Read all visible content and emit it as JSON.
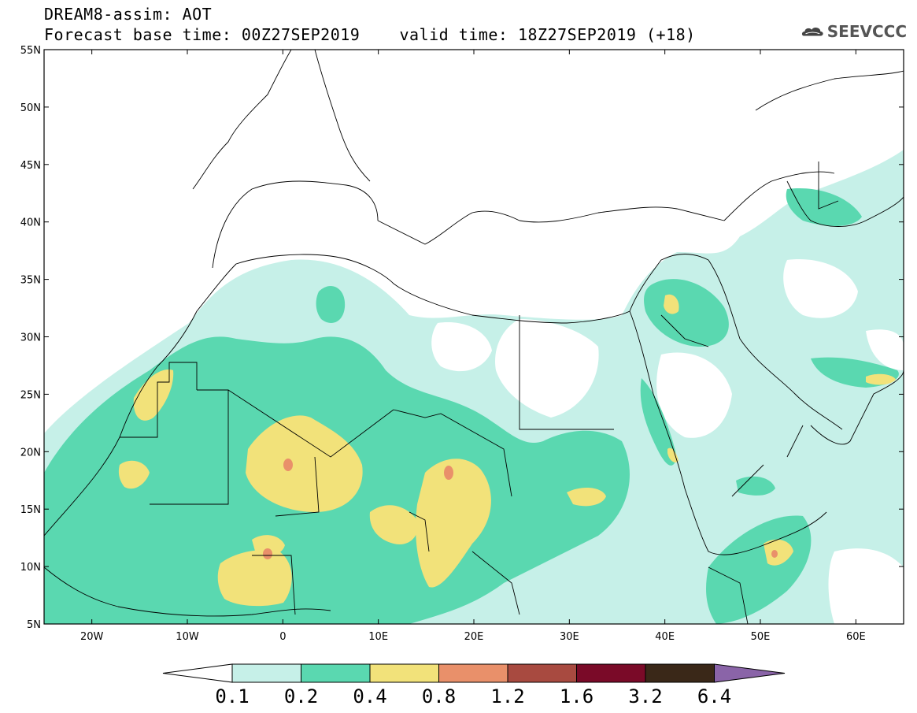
{
  "header": {
    "title": "DREAM8-assim: AOT",
    "base_label": "Forecast base time: 00Z27SEP2019",
    "valid_label": "valid time: 18Z27SEP2019 (+18)",
    "logo_text": "SEEVCCC"
  },
  "map": {
    "lon_range": [
      -25,
      65
    ],
    "lat_range": [
      5,
      55
    ],
    "lat_ticks": [
      "5N",
      "10N",
      "15N",
      "20N",
      "25N",
      "30N",
      "35N",
      "40N",
      "45N",
      "50N",
      "55N"
    ],
    "lon_ticks": [
      "20W",
      "10W",
      "0",
      "10E",
      "20E",
      "30E",
      "40E",
      "50E",
      "60E"
    ]
  },
  "colorbar": {
    "labels": [
      "0.1",
      "0.2",
      "0.4",
      "0.8",
      "1.2",
      "1.6",
      "3.2",
      "6.4"
    ],
    "colors": [
      "#ffffff",
      "#c6f0e8",
      "#5ad8b0",
      "#f2e27a",
      "#e9906a",
      "#a84a40",
      "#7a0a28",
      "#3a2818",
      "#8a64a8"
    ]
  },
  "colors": {
    "level1": "#c6f0e8",
    "level2": "#5ad8b0",
    "level3": "#f2e27a",
    "level4": "#e9906a"
  }
}
